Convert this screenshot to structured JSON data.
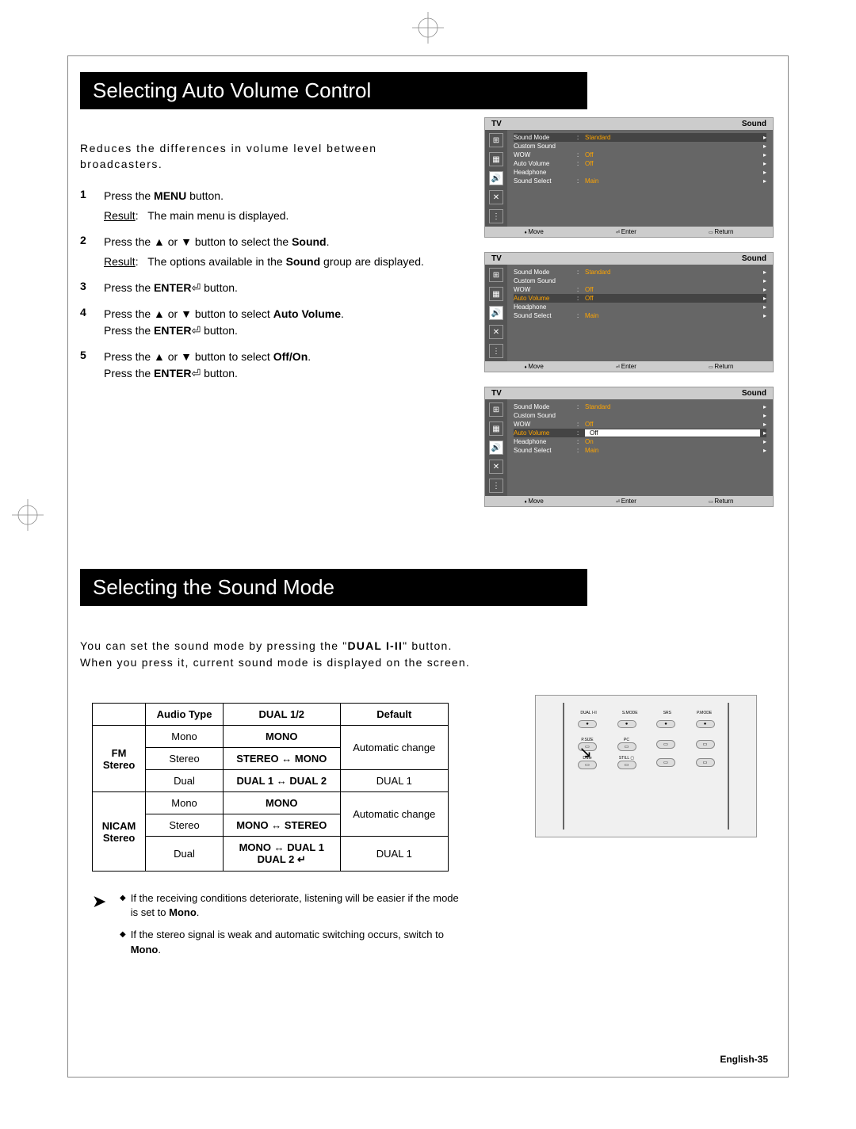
{
  "crop_marks": true,
  "heading_1": "Selecting Auto Volume Control",
  "intro_1": "Reduces the differences in volume level between broadcasters.",
  "steps": [
    {
      "num": "1",
      "body": "Press the <b>MENU</b> button.",
      "result": "The main menu is displayed."
    },
    {
      "num": "2",
      "body": "Press the ▲ or ▼ button to select the <b>Sound</b>.",
      "result": "The options available in the <b>Sound</b> group are displayed."
    },
    {
      "num": "3",
      "body": "Press the <b>ENTER</b>⏎ button."
    },
    {
      "num": "4",
      "body": "Press the ▲ or ▼ button to select <b>Auto Volume</b>.<br>Press the <b>ENTER</b>⏎ button."
    },
    {
      "num": "5",
      "body": "Press the ▲ or ▼ button to select <b>Off/On</b>.<br>Press the <b>ENTER</b>⏎ button."
    }
  ],
  "osd_common": {
    "header_left": "TV",
    "header_right": "Sound",
    "footer": [
      "Move",
      "Enter",
      "Return"
    ],
    "tabs": [
      "⊞",
      "▦",
      "🔊",
      "✕",
      "⋮"
    ]
  },
  "osd_panels": [
    {
      "active_tab": 2,
      "highlight": 0,
      "items": [
        {
          "label": "Sound Mode",
          "val": "Standard"
        },
        {
          "label": "Custom Sound",
          "val": ""
        },
        {
          "label": "WOW",
          "val": "Off"
        },
        {
          "label": "Auto Volume",
          "val": "Off"
        },
        {
          "label": "Headphone",
          "val": ""
        },
        {
          "label": "Sound Select",
          "val": "Main"
        }
      ]
    },
    {
      "active_tab": 2,
      "highlight": 3,
      "items": [
        {
          "label": "Sound Mode",
          "val": "Standard"
        },
        {
          "label": "Custom Sound",
          "val": ""
        },
        {
          "label": "WOW",
          "val": "Off"
        },
        {
          "label": "Auto Volume",
          "val": "Off",
          "orange": true
        },
        {
          "label": "Headphone",
          "val": ""
        },
        {
          "label": "Sound Select",
          "val": "Main"
        }
      ]
    },
    {
      "active_tab": 2,
      "highlight": 3,
      "items": [
        {
          "label": "Sound Mode",
          "val": "Standard"
        },
        {
          "label": "Custom Sound",
          "val": ""
        },
        {
          "label": "WOW",
          "val": "Off"
        },
        {
          "label": "Auto Volume",
          "val": "Off",
          "boxed": true,
          "orange": true
        },
        {
          "label": "Headphone",
          "val": "On"
        },
        {
          "label": "Sound Select",
          "val": "Main"
        }
      ]
    }
  ],
  "heading_2": "Selecting the Sound Mode",
  "intro_2": "You can set the sound mode by pressing the \"<b>DUAL I-II</b>\" button.<br>When you press it, current sound mode is displayed on the screen.",
  "table": {
    "headers": [
      "",
      "Audio Type",
      "DUAL 1/2",
      "Default"
    ],
    "groups": [
      {
        "group_label": "FM<br>Stereo",
        "rows": [
          {
            "type": "Mono",
            "dual": "<b>MONO</b>",
            "def": "Automatic change",
            "def_rowspan": 2
          },
          {
            "type": "Stereo",
            "dual": "<b>STEREO ↔ MONO</b>"
          },
          {
            "type": "Dual",
            "dual": "<b>DUAL 1 ↔ DUAL 2</b>",
            "def": "DUAL 1"
          }
        ]
      },
      {
        "group_label": "NICAM<br>Stereo",
        "rows": [
          {
            "type": "Mono",
            "dual": "<b>MONO</b>",
            "def": "Automatic change",
            "def_rowspan": 2
          },
          {
            "type": "Stereo",
            "dual": "<b>MONO ↔ STEREO</b>"
          },
          {
            "type": "Dual",
            "dual": "<b>MONO ↔ DUAL 1</b><br><b>DUAL 2 ↵</b>",
            "def": "DUAL 1"
          }
        ]
      }
    ]
  },
  "notes": [
    "If the receiving conditions deteriorate, listening will be easier if the mode is set to <b>Mono</b>.",
    "If the stereo signal is weak and automatic switching occurs, switch to <b>Mono</b>."
  ],
  "remote": {
    "row1": [
      "DUAL I-II",
      "S.MODE",
      "SRS",
      "P.MODE"
    ],
    "row2": [
      "P.SIZE",
      "PC"
    ],
    "row3": [
      "DNIe",
      "STILL ▢"
    ]
  },
  "page_label": "English-35",
  "colors": {
    "osd_bg": "#666666",
    "osd_header": "#cccccc",
    "osd_value": "#ffa500",
    "osd_tab": "#555555",
    "black": "#000000",
    "white": "#ffffff"
  }
}
